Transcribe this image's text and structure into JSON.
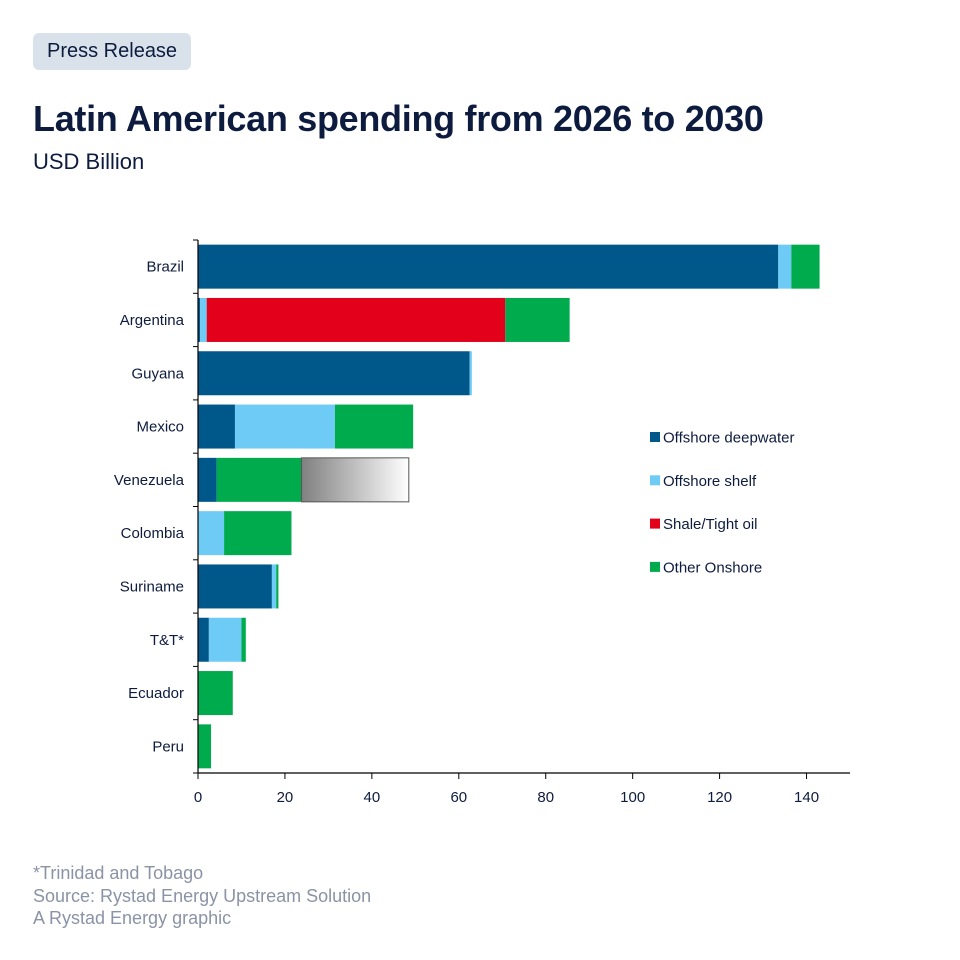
{
  "header": {
    "badge": "Press Release",
    "title": "Latin American spending from 2026 to 2030",
    "subtitle": "USD Billion"
  },
  "footer": {
    "note": "*Trinidad and Tobago",
    "source": "Source: Rystad Energy Upstream Solution",
    "credit": "A Rystad Energy graphic"
  },
  "chart_data": {
    "type": "bar",
    "orientation": "horizontal",
    "stacked": true,
    "title": "Latin American spending from 2026 to 2030",
    "subtitle": "USD Billion",
    "xlabel": "",
    "ylabel": "",
    "xlim": [
      0,
      150
    ],
    "xticks": [
      0,
      20,
      40,
      60,
      80,
      100,
      120,
      140
    ],
    "grid": false,
    "legend": {
      "position": "right"
    },
    "categories": [
      "Brazil",
      "Argentina",
      "Guyana",
      "Mexico",
      "Venezuela",
      "Colombia",
      "Suriname",
      "T&T*",
      "Ecuador",
      "Peru"
    ],
    "series": [
      {
        "name": "Offshore deepwater",
        "color": "#00578a",
        "values": [
          133.5,
          0.5,
          62.5,
          8.5,
          4.3,
          0,
          17,
          2.5,
          0,
          0
        ]
      },
      {
        "name": "Offshore shelf",
        "color": "#6ecbf5",
        "values": [
          3,
          1.5,
          0.5,
          23,
          0,
          6,
          1,
          7.5,
          0,
          0
        ]
      },
      {
        "name": "Shale/Tight oil",
        "color": "#e2001a",
        "values": [
          0,
          68.7,
          0,
          0,
          0,
          0,
          0,
          0,
          0,
          0
        ]
      },
      {
        "name": "Other Onshore",
        "color": "#00ab4e",
        "values": [
          6.5,
          14.8,
          0,
          18,
          19.5,
          15.5,
          0.5,
          1,
          8,
          3
        ]
      }
    ],
    "annotation_box": {
      "category": "Venezuela",
      "from": 23.8,
      "to": 48.5
    }
  }
}
